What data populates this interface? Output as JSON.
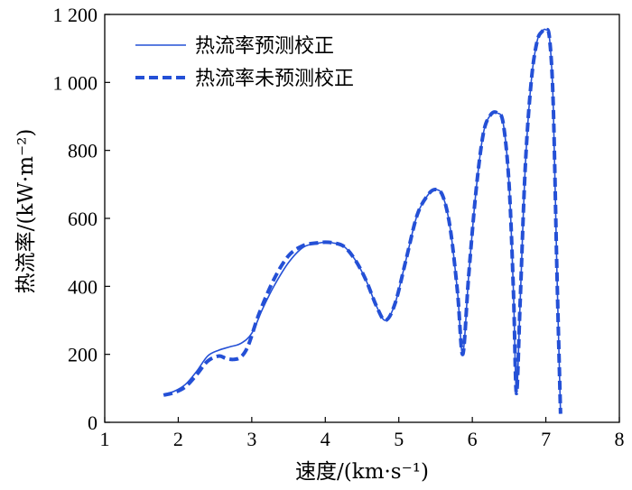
{
  "chart_data": {
    "type": "line",
    "xlabel": "速度/(km·s⁻¹)",
    "ylabel": "热流率/(kW·m⁻²)",
    "xlim": [
      1,
      8
    ],
    "ylim": [
      0,
      1200
    ],
    "xticks": [
      1,
      2,
      3,
      4,
      5,
      6,
      7,
      8
    ],
    "xtick_labels": [
      "1",
      "2",
      "3",
      "4",
      "5",
      "6",
      "7",
      "8"
    ],
    "yticks": [
      0,
      200,
      400,
      600,
      800,
      1000,
      1200
    ],
    "ytick_labels": [
      "0",
      "200",
      "400",
      "600",
      "800",
      "1 000",
      "1 200"
    ],
    "grid": false,
    "legend_position": "top-left",
    "colors": {
      "series": "#2450d6",
      "axis": "#000000"
    },
    "series": [
      {
        "name": "热流率预测校正",
        "style": "solid",
        "x": [
          1.8,
          1.95,
          2.1,
          2.25,
          2.4,
          2.55,
          2.7,
          2.85,
          3.0,
          3.15,
          3.3,
          3.5,
          3.7,
          3.9,
          4.0,
          4.1,
          4.25,
          4.4,
          4.55,
          4.7,
          4.82,
          4.95,
          5.1,
          5.25,
          5.4,
          5.5,
          5.6,
          5.7,
          5.8,
          5.87,
          5.95,
          6.05,
          6.15,
          6.25,
          6.34,
          6.42,
          6.5,
          6.56,
          6.6,
          6.65,
          6.72,
          6.8,
          6.88,
          6.95,
          7.0,
          7.05,
          7.1,
          7.15,
          7.2
        ],
        "y": [
          82,
          92,
          112,
          150,
          195,
          212,
          222,
          232,
          262,
          335,
          400,
          470,
          515,
          527,
          530,
          528,
          518,
          480,
          420,
          340,
          300,
          350,
          480,
          610,
          670,
          685,
          665,
          570,
          380,
          200,
          430,
          680,
          850,
          905,
          910,
          880,
          700,
          380,
          85,
          350,
          750,
          1000,
          1120,
          1150,
          1155,
          1130,
          940,
          450,
          25
        ]
      },
      {
        "name": "热流率未预测校正",
        "style": "dashed",
        "x": [
          1.8,
          1.95,
          2.1,
          2.25,
          2.4,
          2.55,
          2.65,
          2.75,
          2.85,
          2.95,
          3.1,
          3.3,
          3.5,
          3.7,
          3.9,
          4.0,
          4.1,
          4.25,
          4.4,
          4.55,
          4.7,
          4.82,
          4.95,
          5.1,
          5.25,
          5.4,
          5.5,
          5.6,
          5.7,
          5.8,
          5.87,
          5.95,
          6.05,
          6.15,
          6.25,
          6.34,
          6.42,
          6.5,
          6.56,
          6.6,
          6.65,
          6.72,
          6.8,
          6.88,
          6.95,
          7.0,
          7.05,
          7.1,
          7.15,
          7.2
        ],
        "y": [
          80,
          88,
          105,
          140,
          180,
          195,
          188,
          185,
          192,
          225,
          320,
          420,
          490,
          520,
          528,
          530,
          528,
          518,
          480,
          420,
          340,
          300,
          350,
          480,
          610,
          670,
          685,
          665,
          570,
          380,
          200,
          430,
          680,
          850,
          905,
          910,
          880,
          700,
          380,
          85,
          350,
          750,
          1000,
          1120,
          1150,
          1155,
          1130,
          940,
          450,
          25
        ]
      }
    ]
  }
}
